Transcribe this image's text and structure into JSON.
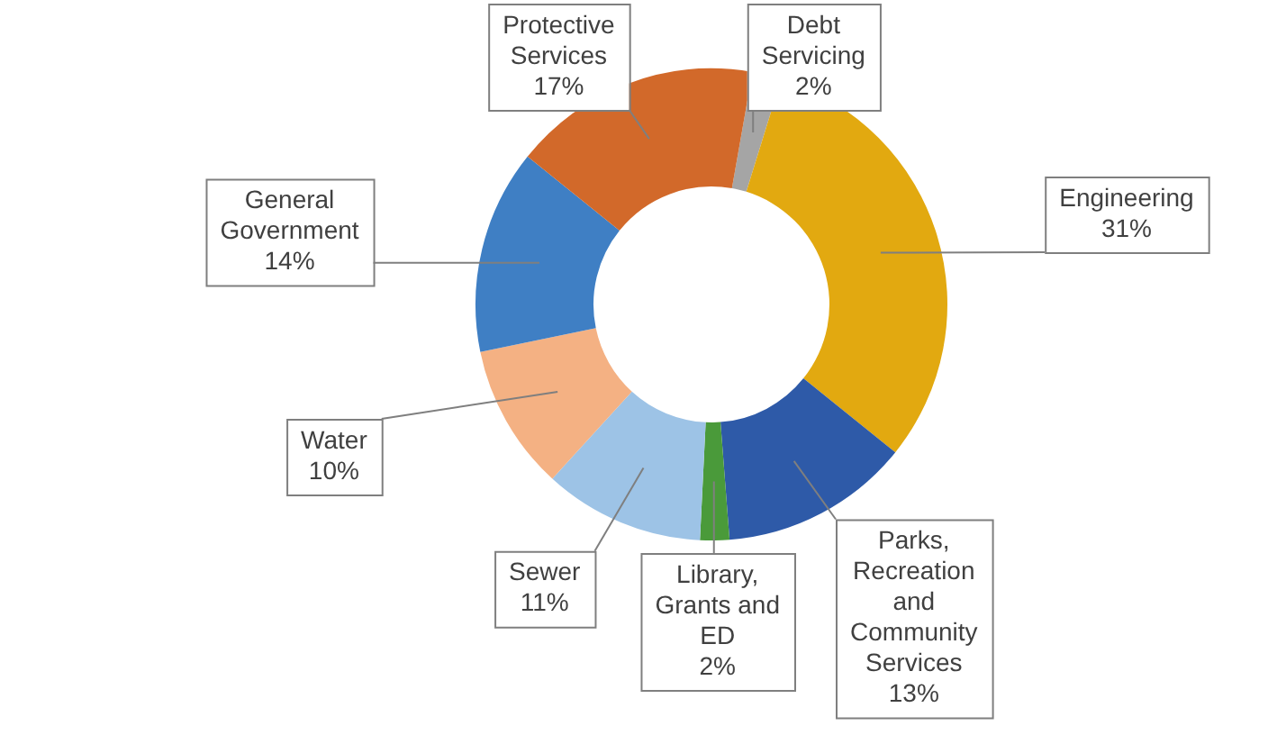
{
  "chart_data": {
    "type": "donut",
    "categories": [
      "Debt Servicing",
      "Engineering",
      "Parks, Recreation and Community Services",
      "Library, Grants and ED",
      "Sewer",
      "Water",
      "General Government",
      "Protective Services"
    ],
    "values": [
      2,
      31,
      13,
      2,
      11,
      10,
      14,
      17
    ],
    "value_labels": [
      "2%",
      "31%",
      "13%",
      "2%",
      "11%",
      "10%",
      "14%",
      "17%"
    ],
    "colors": [
      "#a5a5a5",
      "#e2a910",
      "#2e5aa8",
      "#4a9a3a",
      "#9dc3e6",
      "#f4b183",
      "#3f7fc4",
      "#d2692a"
    ],
    "legend": false
  }
}
